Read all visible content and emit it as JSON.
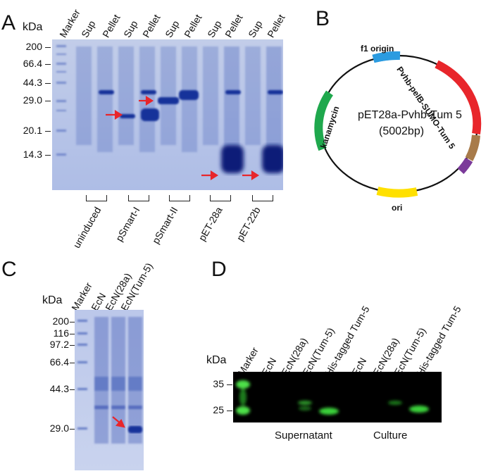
{
  "panel_a": {
    "letter": "A",
    "unit": "kDa",
    "markers": [
      "200",
      "66.4",
      "44.3",
      "29.0",
      "20.1",
      "14.3"
    ],
    "lanes": [
      "Marker",
      "Sup",
      "Pellet",
      "Sup",
      "Pellet",
      "Sup",
      "Pellet",
      "Sup",
      "Pellet",
      "Sup",
      "Pellet"
    ],
    "groups": [
      "uninduced",
      "pSmart-I",
      "pSmart-II",
      "pET-28a",
      "pET-22b"
    ]
  },
  "panel_b": {
    "letter": "B",
    "plasmid_name": "pET28a-Pvhb-Tum 5",
    "plasmid_size": "(5002bp)",
    "features": {
      "f1": "f1 origin",
      "promoter": "Pvhb-pelB-SUMO-Tum 5",
      "kan": "kanamycin",
      "ori": "ori"
    },
    "colors": {
      "f1": "#2b9be0",
      "promoter": "#e8262b",
      "tum": "#a87b4a",
      "purple": "#7b3a9a",
      "kan": "#1fa84d",
      "ori": "#ffe000"
    }
  },
  "panel_c": {
    "letter": "C",
    "unit": "kDa",
    "markers": [
      "200",
      "116",
      "97.2",
      "66.4",
      "44.3",
      "29.0"
    ],
    "lanes": [
      "Marker",
      "EcN",
      "EcN(28a)",
      "EcN(Tum-5)"
    ]
  },
  "panel_d": {
    "letter": "D",
    "unit": "kDa",
    "markers": [
      "35",
      "25"
    ],
    "lanes": [
      "Marker",
      "EcN",
      "EcN(28a)",
      "EcN(Tum-5)",
      "His-tagged Tum-5",
      "EcN",
      "EcN(28a)",
      "EcN(Tum-5)",
      "His-tagged Tum-5"
    ],
    "groups": [
      "Supernatant",
      "Culture"
    ]
  }
}
